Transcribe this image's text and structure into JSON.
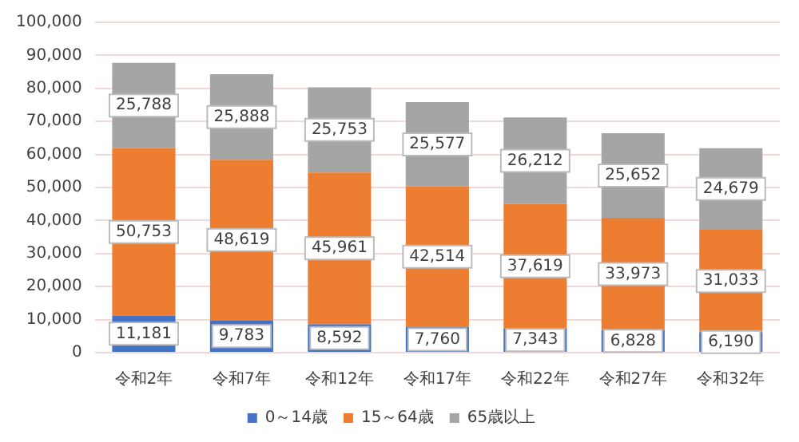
{
  "chart_data": {
    "type": "bar",
    "stacked": true,
    "categories": [
      "令和2年",
      "令和7年",
      "令和12年",
      "令和17年",
      "令和22年",
      "令和27年",
      "令和32年"
    ],
    "series": [
      {
        "name": "0～14歳",
        "color": "#4472c4",
        "values": [
          11181,
          9783,
          8592,
          7760,
          7343,
          6828,
          6190
        ],
        "value_labels": [
          "11,181",
          "9,783",
          "8,592",
          "7,760",
          "7,343",
          "6,828",
          "6,190"
        ]
      },
      {
        "name": "15～64歳",
        "color": "#ed7d31",
        "values": [
          50753,
          48619,
          45961,
          42514,
          37619,
          33973,
          31033
        ],
        "value_labels": [
          "50,753",
          "48,619",
          "45,961",
          "42,514",
          "37,619",
          "33,973",
          "31,033"
        ]
      },
      {
        "name": "65歳以上",
        "color": "#a5a5a5",
        "values": [
          25788,
          25888,
          25753,
          25577,
          26212,
          25652,
          24679
        ],
        "value_labels": [
          "25,788",
          "25,888",
          "25,753",
          "25,577",
          "26,212",
          "25,652",
          "24,679"
        ]
      }
    ],
    "ylim": [
      0,
      100000
    ],
    "yticks": [
      0,
      {
        "value": 10000,
        "label": "10,000"
      },
      {
        "value": 20000,
        "label": "20,000"
      },
      {
        "value": 30000,
        "label": "30,000"
      },
      {
        "value": 40000,
        "label": "40,000"
      },
      {
        "value": 50000,
        "label": "50,000"
      },
      {
        "value": 60000,
        "label": "60,000"
      },
      {
        "value": 70000,
        "label": "70,000"
      },
      {
        "value": 80000,
        "label": "80,000"
      },
      {
        "value": 90000,
        "label": "90,000"
      },
      {
        "value": 100000,
        "label": "100,000"
      }
    ],
    "grid": "y",
    "legend": "bottom"
  }
}
